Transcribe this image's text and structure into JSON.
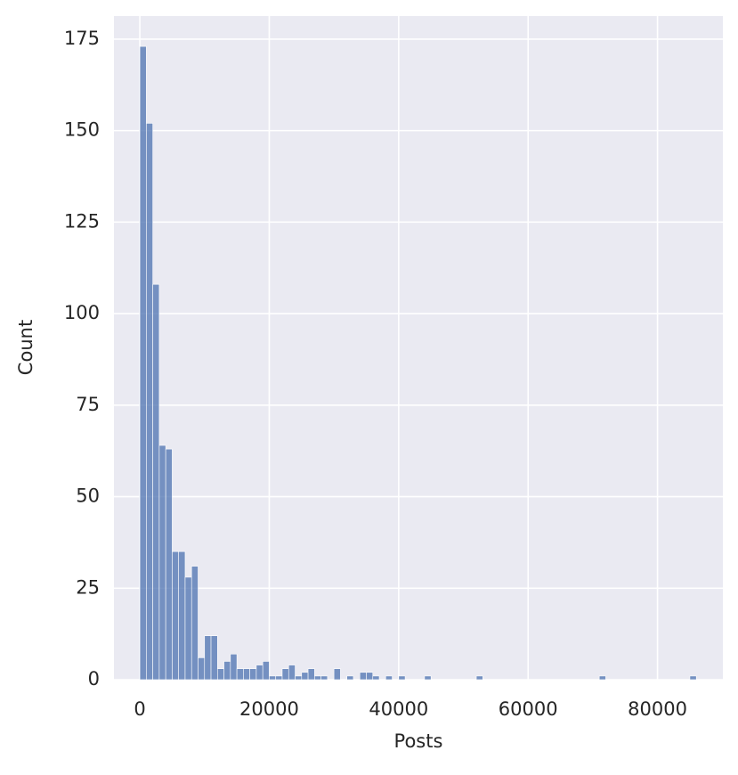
{
  "chart_data": {
    "type": "histogram",
    "x_label": "Posts",
    "y_label": "Count",
    "bins": [
      0,
      1000,
      2000,
      3000,
      4000,
      5000,
      6000,
      7000,
      8000,
      9000,
      10000,
      11000,
      12000,
      13000,
      14000,
      15000,
      16000,
      17000,
      18000,
      19000,
      20000,
      21000,
      22000,
      23000,
      24000,
      25000,
      26000,
      27000,
      28000,
      29000,
      30000,
      31000,
      32000,
      33000,
      34000,
      35000,
      36000,
      37000,
      38000,
      39000,
      40000,
      41000,
      42000,
      43000,
      44000,
      45000,
      46000,
      47000,
      48000,
      49000,
      50000,
      51000,
      52000,
      53000,
      54000,
      55000,
      56000,
      57000,
      58000,
      59000,
      60000,
      61000,
      62000,
      63000,
      64000,
      65000,
      66000,
      67000,
      68000,
      69000,
      70000,
      71000,
      72000,
      73000,
      74000,
      75000,
      76000,
      77000,
      78000,
      79000,
      80000,
      81000,
      82000,
      83000,
      84000,
      85000,
      86000
    ],
    "values": [
      173,
      152,
      108,
      64,
      63,
      35,
      35,
      28,
      31,
      6,
      12,
      12,
      3,
      5,
      7,
      3,
      3,
      3,
      4,
      5,
      1,
      1,
      3,
      4,
      1,
      2,
      3,
      1,
      1,
      0,
      3,
      0,
      1,
      0,
      2,
      2,
      1,
      0,
      1,
      0,
      1,
      0,
      0,
      0,
      1,
      0,
      0,
      0,
      0,
      0,
      0,
      0,
      1,
      0,
      0,
      0,
      0,
      0,
      0,
      0,
      0,
      0,
      0,
      0,
      0,
      0,
      0,
      0,
      0,
      0,
      0,
      1,
      0,
      0,
      0,
      0,
      0,
      0,
      0,
      0,
      0,
      0,
      0,
      0,
      0,
      1
    ],
    "color": "#4c72b0",
    "xlim": [
      -4000,
      90100
    ],
    "xticks": [
      0,
      20000,
      40000,
      60000,
      80000
    ],
    "ylim": [
      0,
      181.3
    ],
    "yticks": [
      0,
      25,
      50,
      75,
      100,
      125,
      150,
      175
    ],
    "grid": true
  }
}
